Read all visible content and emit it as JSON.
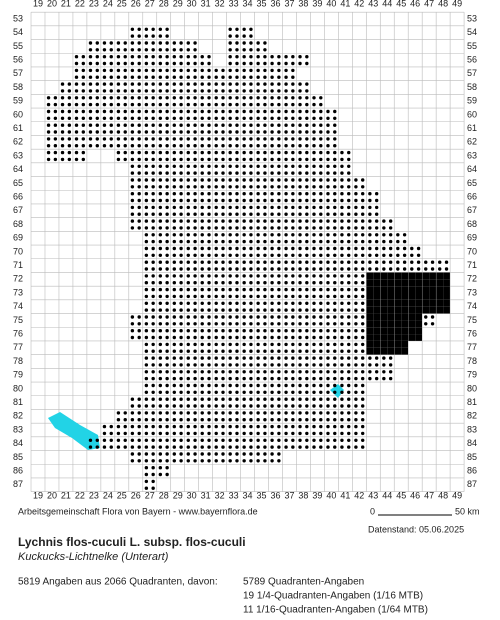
{
  "map": {
    "columns": [
      "19",
      "20",
      "21",
      "22",
      "23",
      "24",
      "25",
      "26",
      "27",
      "28",
      "29",
      "30",
      "31",
      "32",
      "33",
      "34",
      "35",
      "36",
      "37",
      "38",
      "39",
      "40",
      "41",
      "42",
      "43",
      "44",
      "45",
      "46",
      "47",
      "48",
      "49"
    ],
    "rows": [
      "53",
      "54",
      "55",
      "56",
      "57",
      "58",
      "59",
      "60",
      "61",
      "62",
      "63",
      "64",
      "65",
      "66",
      "67",
      "68",
      "69",
      "70",
      "71",
      "72",
      "73",
      "74",
      "75",
      "76",
      "77",
      "78",
      "79",
      "80",
      "81",
      "82",
      "83",
      "84",
      "85",
      "86",
      "87"
    ],
    "scale_start": "0",
    "scale_end": "50 km"
  },
  "footer": {
    "credit": "Arbeitsgemeinschaft Flora von Bayern - www.bayernflora.de",
    "date": "Datenstand: 05.06.2025",
    "species": "Lychnis flos-cuculi L. subsp. flos-cuculi",
    "common_name": "Kuckucks-Lichtnelke (Unterart)",
    "summary": "5819 Angaben aus 2066 Quadranten, davon:",
    "details": [
      "5789 Quadranten-Angaben",
      "19 1/4-Quadranten-Angaben (1/16 MTB)",
      "11 1/16-Quadranten-Angaben (1/64 MTB)"
    ]
  }
}
